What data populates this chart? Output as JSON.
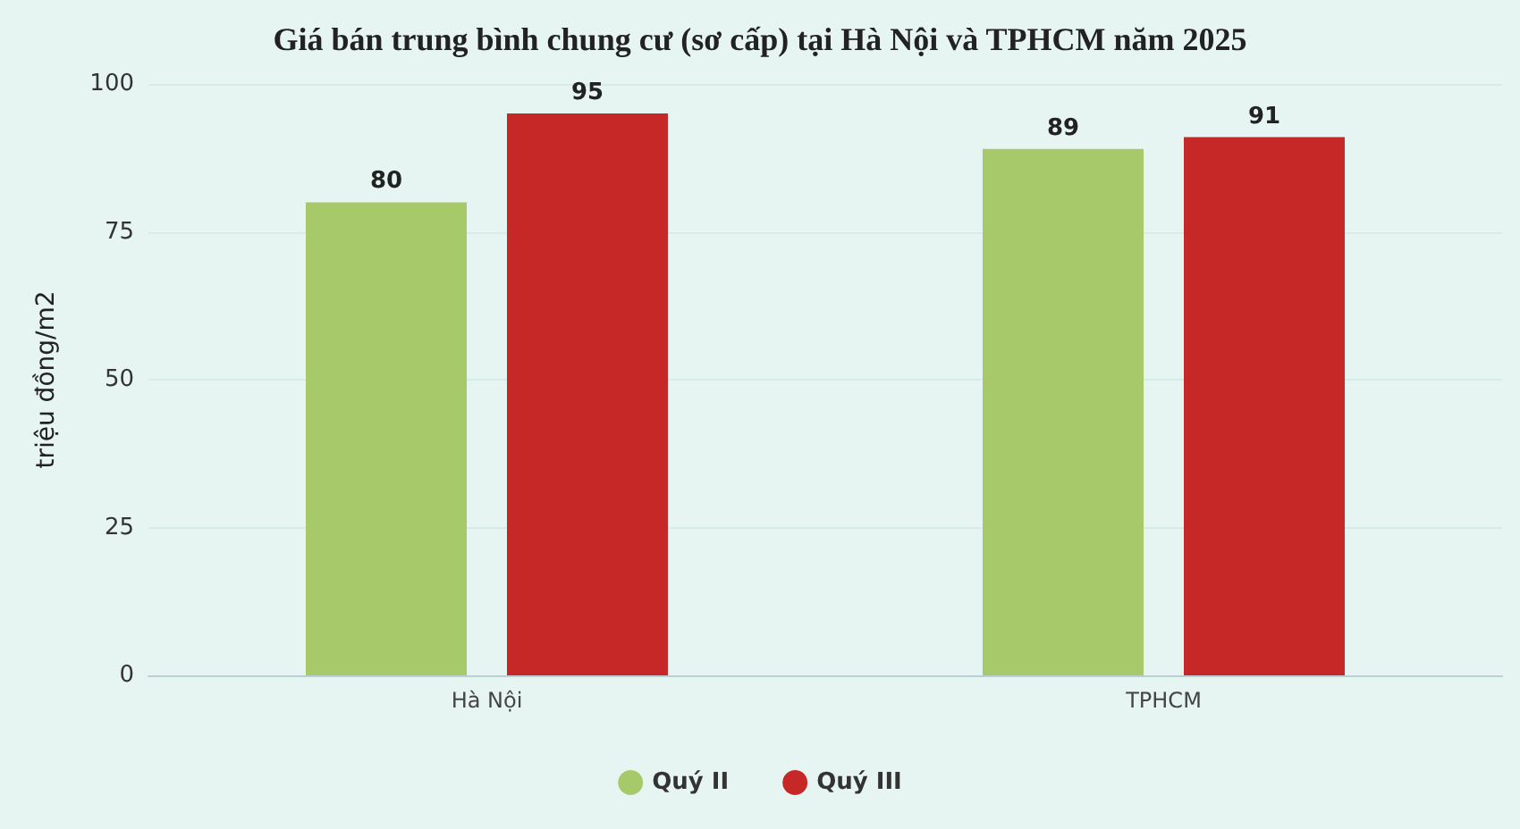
{
  "chart_data": {
    "type": "bar",
    "title": "Giá bán trung bình chung cư (sơ cấp) tại Hà Nội và TPHCM năm 2025",
    "ylabel": "triệu đồng/m2",
    "categories": [
      "Hà Nội",
      "TPHCM"
    ],
    "series": [
      {
        "name": "Quý II",
        "color": "#a8c96a",
        "values": [
          80,
          89
        ]
      },
      {
        "name": "Quý III",
        "color": "#c62828",
        "values": [
          95,
          91
        ]
      }
    ],
    "ylim": [
      0,
      100
    ],
    "yticks": [
      0,
      25,
      50,
      75,
      100
    ],
    "grid": "y",
    "legend": "bottom",
    "data_labels": true
  }
}
